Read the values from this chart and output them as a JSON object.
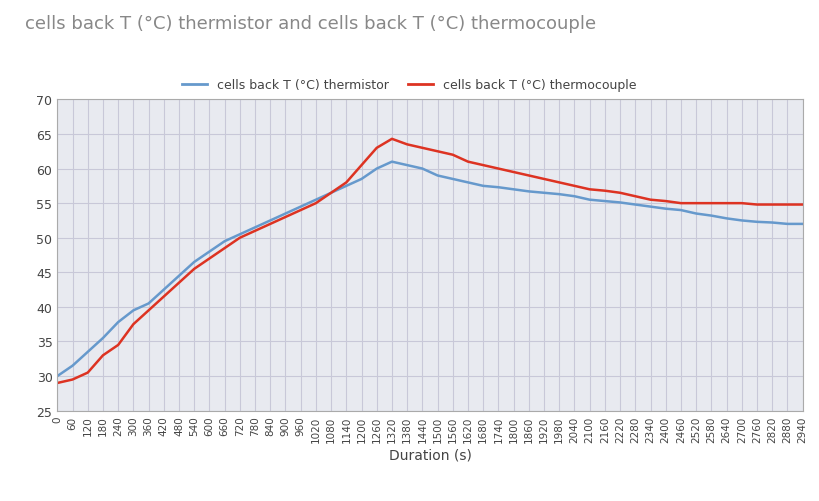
{
  "title": "cells back T (°C) thermistor and cells back T (°C) thermocouple",
  "xlabel": "Duration (s)",
  "legend_thermistor": "cells back T (°C) thermistor",
  "legend_thermocouple": "cells back T (°C) thermocouple",
  "color_thermistor": "#6699CC",
  "color_thermocouple": "#DD3322",
  "xlim": [
    0,
    2940
  ],
  "ylim": [
    25,
    70
  ],
  "yticks": [
    25,
    30,
    35,
    40,
    45,
    50,
    55,
    60,
    65,
    70
  ],
  "background_color": "#ffffff",
  "plot_bg_color": "#e8eaf0",
  "grid_color": "#c8c8d8",
  "title_color": "#888888",
  "thermistor_x": [
    0,
    60,
    120,
    180,
    240,
    300,
    360,
    420,
    480,
    540,
    600,
    660,
    720,
    780,
    840,
    900,
    960,
    1020,
    1080,
    1140,
    1200,
    1260,
    1320,
    1380,
    1440,
    1500,
    1560,
    1620,
    1680,
    1740,
    1800,
    1860,
    1920,
    1980,
    2040,
    2100,
    2160,
    2220,
    2280,
    2340,
    2400,
    2460,
    2520,
    2580,
    2640,
    2700,
    2760,
    2820,
    2880,
    2940
  ],
  "thermistor_y": [
    30.0,
    31.5,
    33.5,
    35.5,
    37.8,
    39.5,
    40.5,
    42.5,
    44.5,
    46.5,
    48.0,
    49.5,
    50.5,
    51.5,
    52.5,
    53.5,
    54.5,
    55.5,
    56.5,
    57.5,
    58.5,
    60.0,
    61.0,
    60.5,
    60.0,
    59.0,
    58.5,
    58.0,
    57.5,
    57.3,
    57.0,
    56.7,
    56.5,
    56.3,
    56.0,
    55.5,
    55.3,
    55.1,
    54.8,
    54.5,
    54.2,
    54.0,
    53.5,
    53.2,
    52.8,
    52.5,
    52.3,
    52.2,
    52.0,
    52.0
  ],
  "thermocouple_x": [
    0,
    60,
    120,
    180,
    240,
    300,
    360,
    420,
    480,
    540,
    600,
    660,
    720,
    780,
    840,
    900,
    960,
    1020,
    1080,
    1140,
    1200,
    1260,
    1320,
    1380,
    1440,
    1500,
    1560,
    1620,
    1680,
    1740,
    1800,
    1860,
    1920,
    1980,
    2040,
    2100,
    2160,
    2220,
    2280,
    2340,
    2400,
    2460,
    2520,
    2580,
    2640,
    2700,
    2760,
    2820,
    2880,
    2940
  ],
  "thermocouple_y": [
    29.0,
    29.5,
    30.5,
    33.0,
    34.5,
    37.5,
    39.5,
    41.5,
    43.5,
    45.5,
    47.0,
    48.5,
    50.0,
    51.0,
    52.0,
    53.0,
    54.0,
    55.0,
    56.5,
    58.0,
    60.5,
    63.0,
    64.3,
    63.5,
    63.0,
    62.5,
    62.0,
    61.0,
    60.5,
    60.0,
    59.5,
    59.0,
    58.5,
    58.0,
    57.5,
    57.0,
    56.8,
    56.5,
    56.0,
    55.5,
    55.3,
    55.0,
    55.0,
    55.0,
    55.0,
    55.0,
    54.8,
    54.8,
    54.8,
    54.8
  ]
}
